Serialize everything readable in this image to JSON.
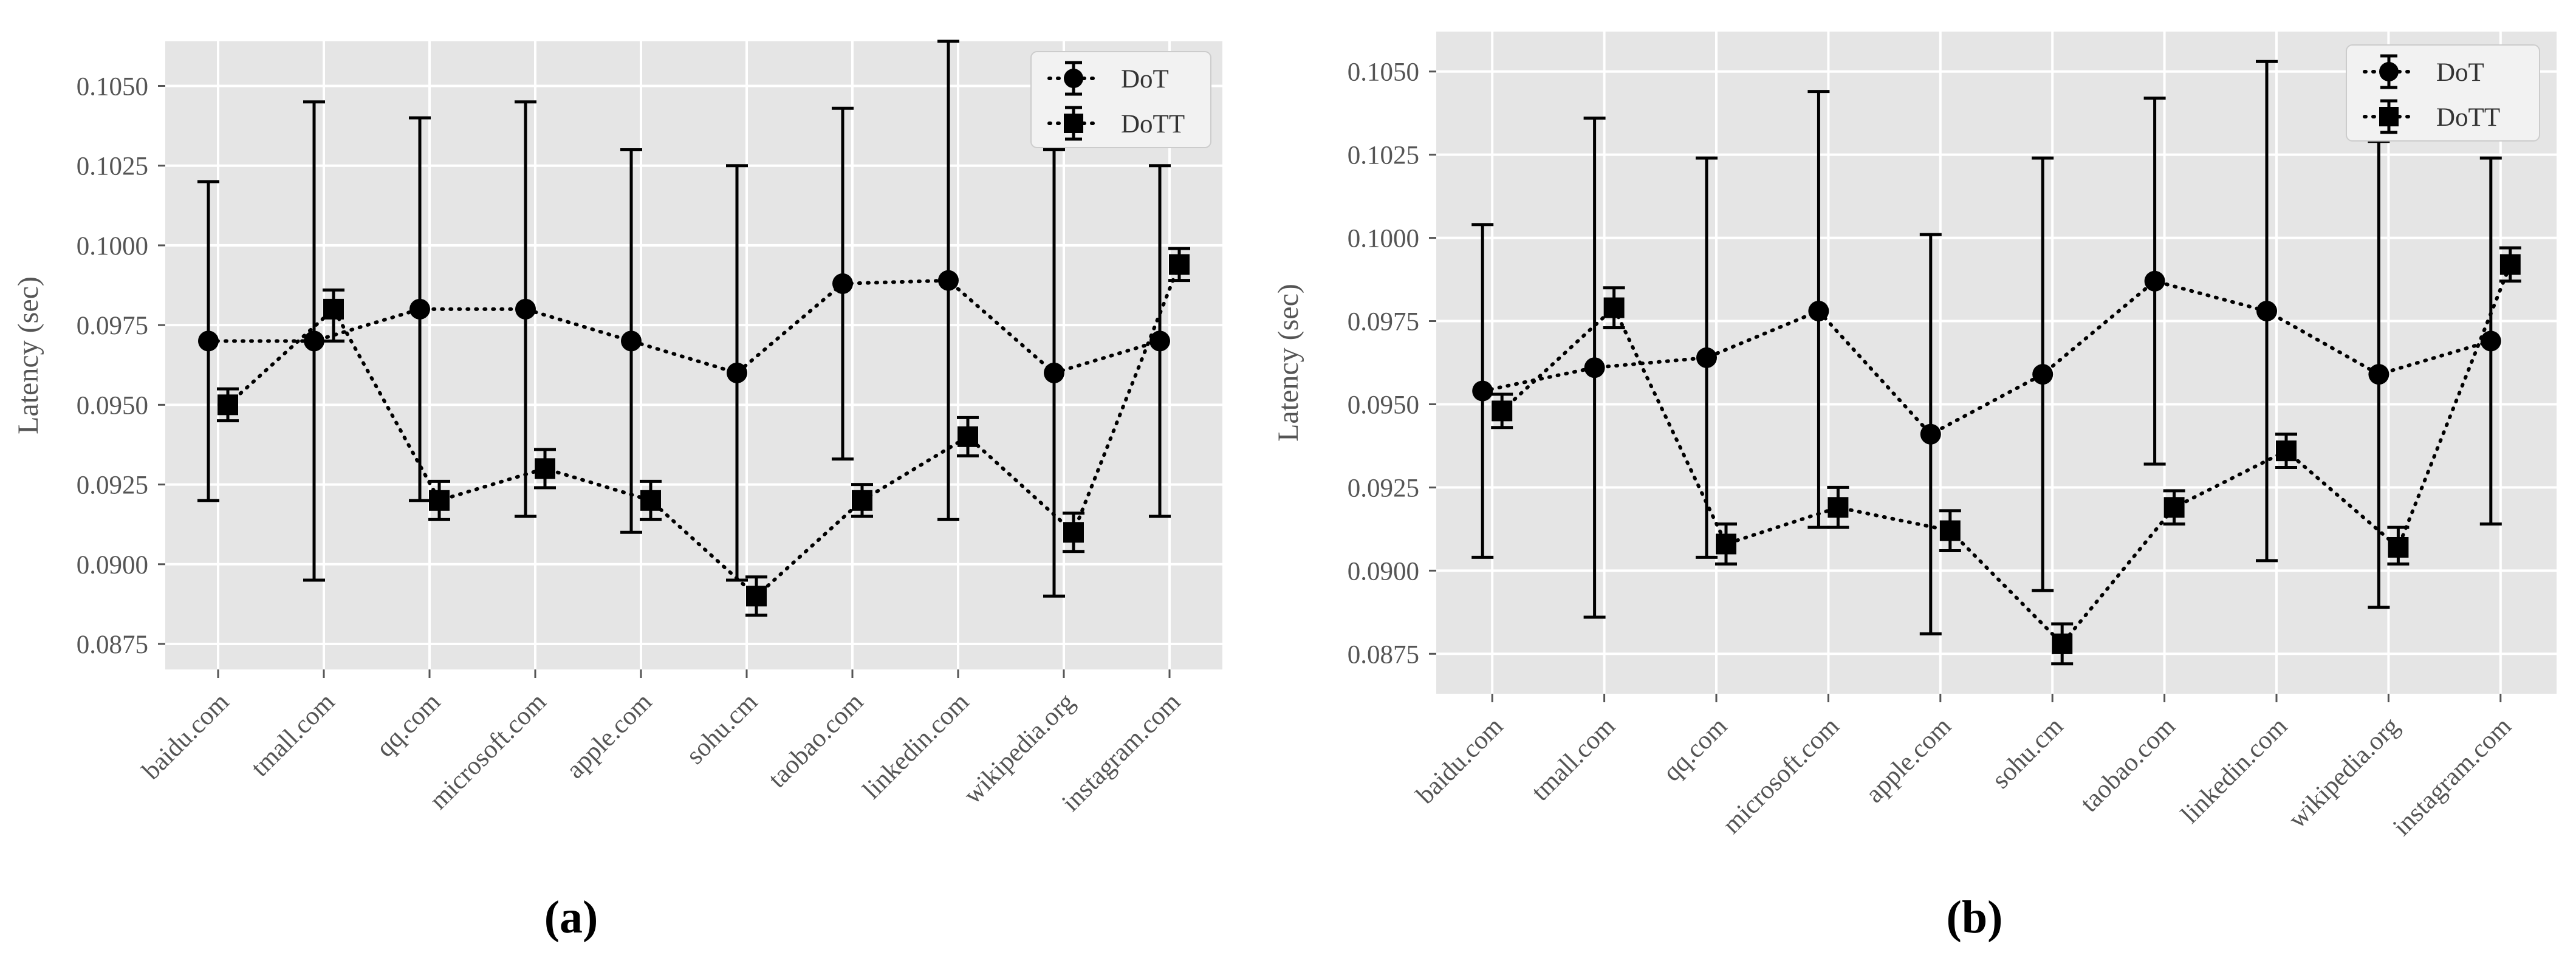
{
  "chart_data": [
    {
      "type": "line",
      "caption": "(a)",
      "ylabel": "Latency (sec)",
      "xlabel": "",
      "ylim": [
        0.0867,
        0.1064
      ],
      "yticks": [
        "0.0875",
        "0.0900",
        "0.0925",
        "0.0950",
        "0.0975",
        "0.1000",
        "0.1025",
        "0.1050"
      ],
      "ytick_values": [
        0.0875,
        0.09,
        0.0925,
        0.095,
        0.0975,
        0.1,
        0.1025,
        0.105
      ],
      "categories": [
        "baidu.com",
        "tmall.com",
        "qq.com",
        "microsoft.com",
        "apple.com",
        "sohu.cm",
        "taobao.com",
        "linkedin.com",
        "wikipedia.org",
        "instagram.com"
      ],
      "grid": true,
      "legend_position": "top-right",
      "series": [
        {
          "name": "DoT",
          "marker": "circle",
          "values": [
            0.097,
            0.097,
            0.098,
            0.098,
            0.097,
            0.096,
            0.0988,
            0.0989,
            0.096,
            0.097
          ],
          "err_low": [
            0.092,
            0.0895,
            0.092,
            0.0915,
            0.091,
            0.0895,
            0.0933,
            0.0914,
            0.089,
            0.0915
          ],
          "err_high": [
            0.102,
            0.1045,
            0.104,
            0.1045,
            0.103,
            0.1025,
            0.1043,
            0.1064,
            0.103,
            0.1025
          ]
        },
        {
          "name": "DoTT",
          "marker": "square",
          "values": [
            0.095,
            0.098,
            0.092,
            0.093,
            0.092,
            0.089,
            0.092,
            0.094,
            0.091,
            0.0994
          ],
          "err_low": [
            0.0945,
            0.097,
            0.0914,
            0.0924,
            0.0914,
            0.0884,
            0.0915,
            0.0934,
            0.0904,
            0.0989
          ],
          "err_high": [
            0.0955,
            0.0986,
            0.0926,
            0.0936,
            0.0926,
            0.0896,
            0.0925,
            0.0946,
            0.0916,
            0.0999
          ]
        }
      ]
    },
    {
      "type": "line",
      "caption": "(b)",
      "ylabel": "Latency (sec)",
      "xlabel": "",
      "ylim": [
        0.0863,
        0.1062
      ],
      "yticks": [
        "0.0875",
        "0.0900",
        "0.0925",
        "0.0950",
        "0.0975",
        "0.1000",
        "0.1025",
        "0.1050"
      ],
      "ytick_values": [
        0.0875,
        0.09,
        0.0925,
        0.095,
        0.0975,
        0.1,
        0.1025,
        0.105
      ],
      "categories": [
        "baidu.com",
        "tmall.com",
        "qq.com",
        "microsoft.com",
        "apple.com",
        "sohu.cm",
        "taobao.com",
        "linkedin.com",
        "wikipedia.org",
        "instagram.com"
      ],
      "grid": true,
      "legend_position": "top-right",
      "series": [
        {
          "name": "DoT",
          "marker": "circle",
          "values": [
            0.0954,
            0.0961,
            0.0964,
            0.0978,
            0.0941,
            0.0959,
            0.0987,
            0.0978,
            0.0959,
            0.0969
          ],
          "err_low": [
            0.0904,
            0.0886,
            0.0904,
            0.0913,
            0.0881,
            0.0894,
            0.0932,
            0.0903,
            0.0889,
            0.0914
          ],
          "err_high": [
            0.1004,
            0.1036,
            0.1024,
            0.1044,
            0.1001,
            0.1024,
            0.1042,
            0.1053,
            0.1029,
            0.1024
          ]
        },
        {
          "name": "DoTT",
          "marker": "square",
          "values": [
            0.0948,
            0.0979,
            0.0908,
            0.0919,
            0.0912,
            0.0878,
            0.0919,
            0.0936,
            0.0907,
            0.0992
          ],
          "err_low": [
            0.0943,
            0.0973,
            0.0902,
            0.0913,
            0.0906,
            0.0872,
            0.0914,
            0.0931,
            0.0902,
            0.0987
          ],
          "err_high": [
            0.0953,
            0.0985,
            0.0914,
            0.0925,
            0.0918,
            0.0884,
            0.0924,
            0.0941,
            0.0913,
            0.0997
          ]
        }
      ]
    }
  ]
}
